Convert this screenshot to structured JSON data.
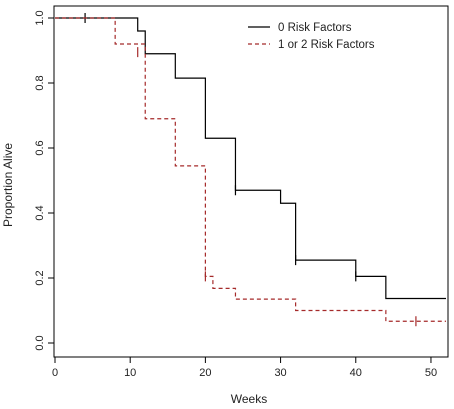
{
  "chart_data": {
    "type": "line",
    "step": true,
    "xlabel": "Weeks",
    "ylabel": "Proportion Alive",
    "xlim": [
      0,
      52
    ],
    "ylim": [
      0,
      1
    ],
    "xticks": [
      0,
      10,
      20,
      30,
      40,
      50
    ],
    "yticks": [
      0.0,
      0.2,
      0.4,
      0.6,
      0.8,
      1.0
    ],
    "xtick_labels": [
      "0",
      "10",
      "20",
      "30",
      "40",
      "50"
    ],
    "ytick_labels": [
      "0.0",
      "0.2",
      "0.4",
      "0.6",
      "0.8",
      "1.0"
    ],
    "grid": false,
    "legend_position": "top-right",
    "series": [
      {
        "name": "0 Risk Factors",
        "color": "#000000",
        "dash": "solid",
        "x": [
          0,
          11,
          12,
          16,
          20,
          24,
          30,
          32,
          40,
          44,
          52
        ],
        "y": [
          1.0,
          0.96,
          0.89,
          0.815,
          0.63,
          0.47,
          0.43,
          0.255,
          0.205,
          0.137,
          0.137
        ],
        "censored": [
          [
            4,
            1.0
          ],
          [
            24,
            0.47
          ],
          [
            32,
            0.255
          ],
          [
            40,
            0.205
          ]
        ]
      },
      {
        "name": "1 or 2 Risk Factors",
        "color": "#a52a2a",
        "dash": "dashed",
        "x": [
          0,
          8,
          12,
          16,
          20,
          21,
          24,
          32,
          44,
          52
        ],
        "y": [
          1.0,
          0.92,
          0.69,
          0.545,
          0.205,
          0.168,
          0.135,
          0.1,
          0.067,
          0.067
        ],
        "censored": [
          [
            11,
            0.895
          ],
          [
            20,
            0.205
          ],
          [
            48,
            0.067
          ]
        ]
      }
    ]
  }
}
